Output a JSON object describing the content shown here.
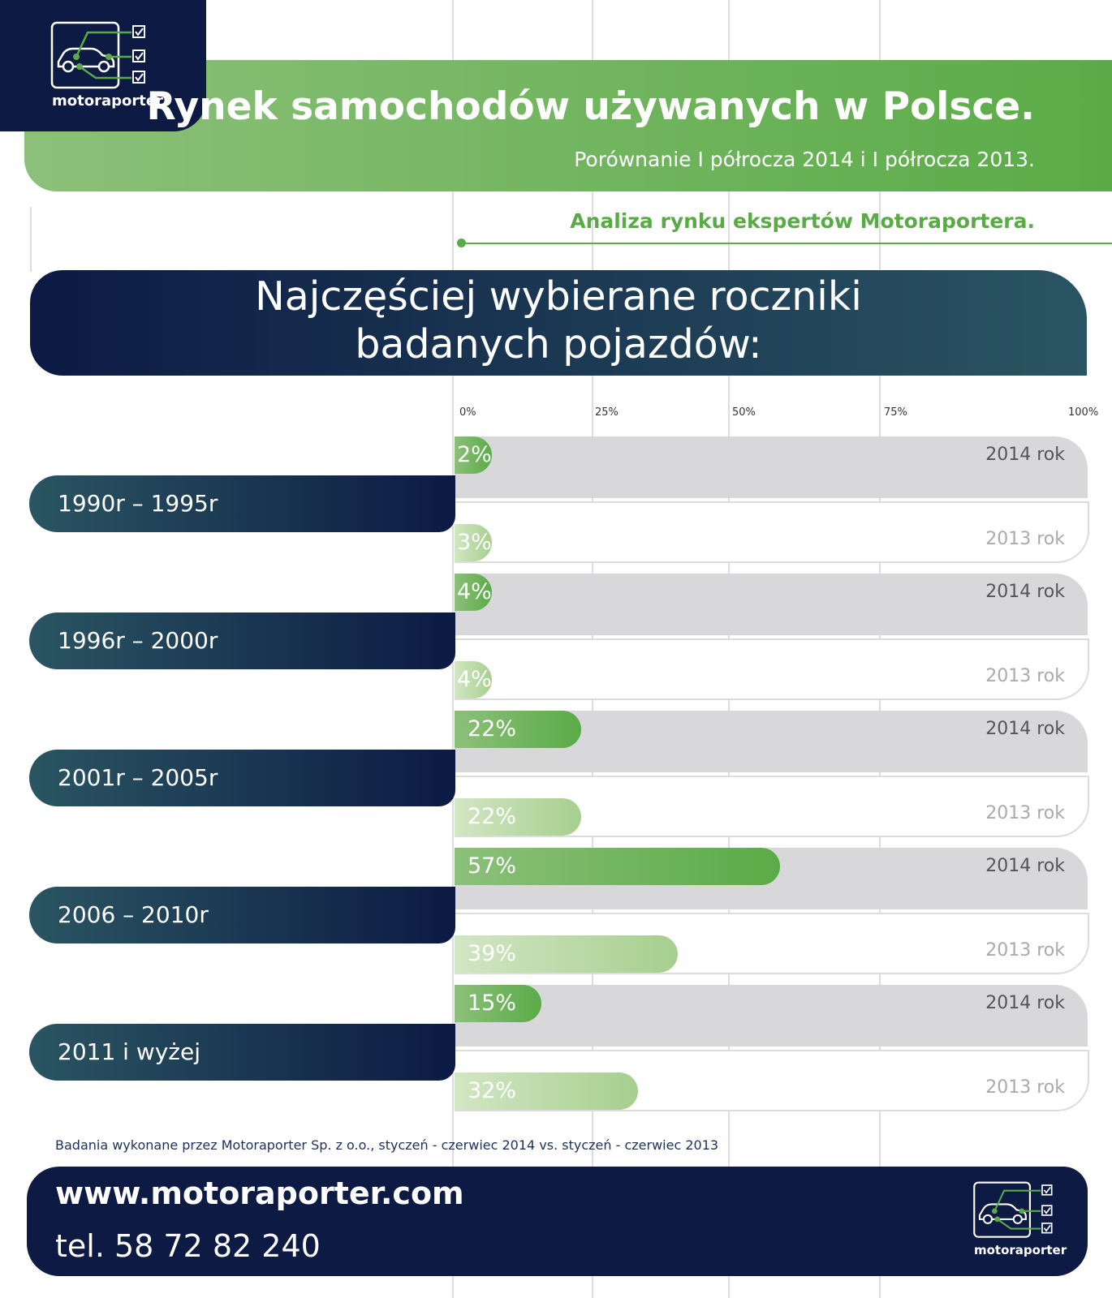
{
  "header": {
    "brand": "motoraporter",
    "title": "Rynek samochodów używanych w Polsce.",
    "subtitle": "Porównanie I półrocza 2014 i I półrocza 2013.",
    "analysis": "Analiza rynku ekspertów Motoraportera."
  },
  "section": {
    "title_line1": "Najczęściej wybierane roczniki",
    "title_line2": "badanych pojazdów:"
  },
  "colors": {
    "navy": "#0c1a44",
    "teal": "#2a5562",
    "green": "#5aab47",
    "light_green": "#a6cf8e",
    "track_gray": "#d8d8da"
  },
  "chart_data": {
    "type": "bar",
    "orientation": "horizontal",
    "ticks": [
      "0%",
      "25%",
      "50%",
      "75%",
      "100%"
    ],
    "xlim": [
      0,
      100
    ],
    "categories": [
      "1990r – 1995r",
      "1996r – 2000r",
      "2001r – 2005r",
      "2006 – 2010r",
      "2011 i wyżej"
    ],
    "series": [
      {
        "name": "2014 rok",
        "values": [
          2,
          4,
          22,
          57,
          15
        ],
        "labels": [
          "2%",
          "4%",
          "22%",
          "57%",
          "15%"
        ]
      },
      {
        "name": "2013 rok",
        "values": [
          3,
          4,
          22,
          39,
          32
        ],
        "labels": [
          "3%",
          "4%",
          "22%",
          "39%",
          "32%"
        ]
      }
    ]
  },
  "footer": {
    "source": "Badania wykonane przez Motoraporter Sp. z o.o., styczeń - czerwiec 2014 vs. styczeń - czerwiec 2013",
    "website": "www.motoraporter.com",
    "phone": "tel. 58 72 82 240",
    "brand": "motoraporter"
  }
}
